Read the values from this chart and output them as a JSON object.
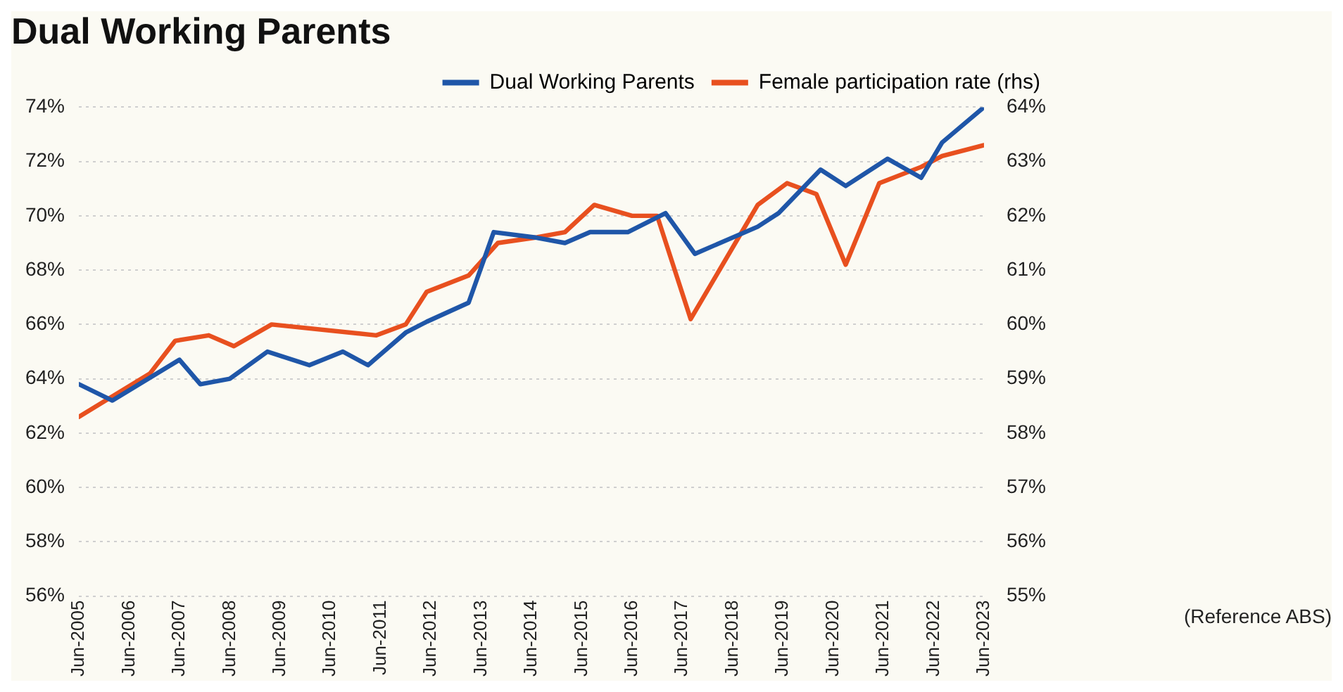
{
  "chart_data": {
    "type": "line",
    "title": "Dual Working Parents",
    "xlim": [
      "2005-06",
      "2023-06"
    ],
    "xticks": [
      {
        "value": "2005-06",
        "label": "Jun-2005"
      },
      {
        "value": "2006-06",
        "label": "Jun-2006"
      },
      {
        "value": "2007-06",
        "label": "Jun-2007"
      },
      {
        "value": "2008-06",
        "label": "Jun-2008"
      },
      {
        "value": "2009-06",
        "label": "Jun-2009"
      },
      {
        "value": "2010-06",
        "label": "Jun-2010"
      },
      {
        "value": "2011-06",
        "label": "Jun-2011"
      },
      {
        "value": "2012-06",
        "label": "Jun-2012"
      },
      {
        "value": "2013-06",
        "label": "Jun-2013"
      },
      {
        "value": "2014-06",
        "label": "Jun-2014"
      },
      {
        "value": "2015-06",
        "label": "Jun-2015"
      },
      {
        "value": "2016-06",
        "label": "Jun-2016"
      },
      {
        "value": "2017-06",
        "label": "Jun-2017"
      },
      {
        "value": "2018-06",
        "label": "Jun-2018"
      },
      {
        "value": "2019-06",
        "label": "Jun-2019"
      },
      {
        "value": "2020-06",
        "label": "Jun-2020"
      },
      {
        "value": "2021-06",
        "label": "Jun-2021"
      },
      {
        "value": "2022-06",
        "label": "Jun-2022"
      },
      {
        "value": "2023-06",
        "label": "Jun-2023"
      }
    ],
    "ylim": [
      56,
      74
    ],
    "yticks": [
      {
        "value": 56,
        "label": "56%"
      },
      {
        "value": 58,
        "label": "58%"
      },
      {
        "value": 60,
        "label": "60%"
      },
      {
        "value": 62,
        "label": "62%"
      },
      {
        "value": 64,
        "label": "64%"
      },
      {
        "value": 66,
        "label": "66%"
      },
      {
        "value": 68,
        "label": "68%"
      },
      {
        "value": 70,
        "label": "70%"
      },
      {
        "value": 72,
        "label": "72%"
      },
      {
        "value": 74,
        "label": "74%"
      }
    ],
    "y2lim": [
      55,
      64
    ],
    "y2ticks": [
      {
        "value": 55,
        "label": "55%"
      },
      {
        "value": 56,
        "label": "56%"
      },
      {
        "value": 57,
        "label": "57%"
      },
      {
        "value": 58,
        "label": "58%"
      },
      {
        "value": 59,
        "label": "59%"
      },
      {
        "value": 60,
        "label": "60%"
      },
      {
        "value": 61,
        "label": "61%"
      },
      {
        "value": 62,
        "label": "62%"
      },
      {
        "value": 63,
        "label": "63%"
      },
      {
        "value": 64,
        "label": "64%"
      }
    ],
    "grid": "y",
    "legend": "top right",
    "marker": "none",
    "line_style": "solid",
    "annotations": [
      "(Reference ABS)"
    ],
    "series": [
      {
        "name": "Dual Working Parents",
        "color": "#1f56a8",
        "x": [
          "2005-06",
          "2006-02",
          "2007-06",
          "2007-11",
          "2008-06",
          "2009-03",
          "2010-01",
          "2010-09",
          "2011-03",
          "2011-12",
          "2012-05",
          "2013-03",
          "2013-09",
          "2014-07",
          "2015-02",
          "2015-08",
          "2016-05",
          "2017-02",
          "2017-09",
          "2018-12",
          "2019-05",
          "2020-03",
          "2020-09",
          "2021-07",
          "2022-03",
          "2022-08",
          "2023-06"
        ],
        "values": [
          63.8,
          63.2,
          64.7,
          63.8,
          64.0,
          65.0,
          64.5,
          65.0,
          64.5,
          65.7,
          66.1,
          66.8,
          69.4,
          69.2,
          69.0,
          69.4,
          69.4,
          70.1,
          68.6,
          69.6,
          70.1,
          71.7,
          71.1,
          72.1,
          71.4,
          72.7,
          74.0
        ]
      },
      {
        "name": "Female participation rate (rhs)",
        "color": "#e8501f",
        "axis": "y2",
        "x": [
          "2005-06",
          "2006-11",
          "2007-05",
          "2008-01",
          "2008-07",
          "2009-04",
          "2011-05",
          "2011-12",
          "2012-05",
          "2013-03",
          "2013-10",
          "2014-07",
          "2015-02",
          "2015-09",
          "2016-06",
          "2016-12",
          "2017-08",
          "2018-12",
          "2019-07",
          "2020-02",
          "2020-09",
          "2021-05",
          "2022-03",
          "2022-08",
          "2023-06"
        ],
        "values": [
          58.3,
          59.1,
          59.7,
          59.8,
          59.6,
          60.0,
          59.8,
          60.0,
          60.6,
          60.9,
          61.5,
          61.6,
          61.7,
          62.2,
          62.0,
          62.0,
          60.1,
          62.2,
          62.6,
          62.4,
          61.1,
          62.6,
          62.9,
          63.1,
          63.3
        ]
      }
    ]
  }
}
